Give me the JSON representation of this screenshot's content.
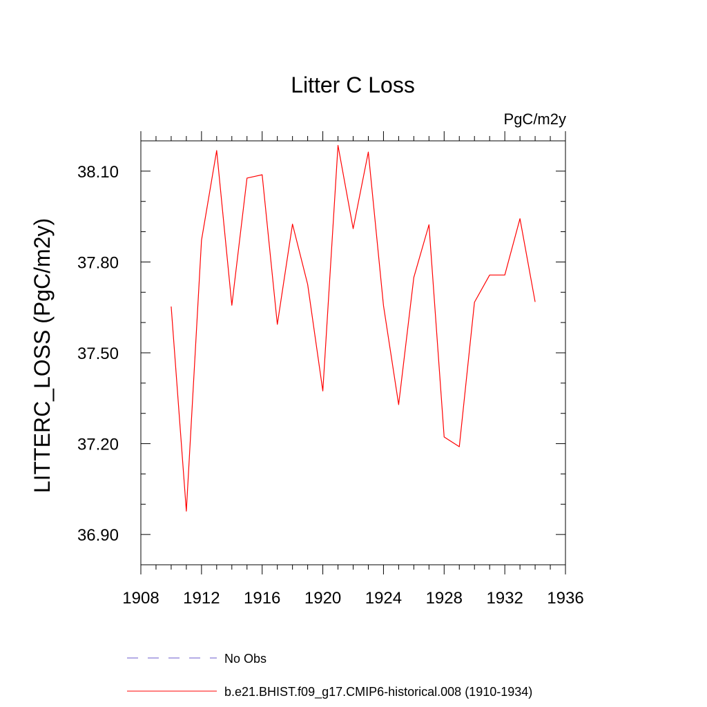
{
  "chart_data": {
    "type": "line",
    "title": "Litter C Loss",
    "units_label": "PgC/m2y",
    "ylabel": "LITTERC_LOSS  (PgC/m2y)",
    "xlim": [
      1908,
      1936
    ],
    "ylim": [
      36.8,
      38.2
    ],
    "x_ticks": [
      1908,
      1912,
      1916,
      1920,
      1924,
      1928,
      1932,
      1936
    ],
    "x_tick_labels": [
      "1908",
      "1912",
      "1916",
      "1920",
      "1924",
      "1928",
      "1932",
      "1936"
    ],
    "y_ticks": [
      36.9,
      37.2,
      37.5,
      37.8,
      38.1
    ],
    "y_tick_labels": [
      "36.90",
      "37.20",
      "37.50",
      "37.80",
      "38.10"
    ],
    "x": [
      1910,
      1911,
      1912,
      1913,
      1914,
      1915,
      1916,
      1917,
      1918,
      1919,
      1920,
      1921,
      1922,
      1923,
      1924,
      1925,
      1926,
      1927,
      1928,
      1929,
      1930,
      1931,
      1932,
      1933,
      1934
    ],
    "series": [
      {
        "name": "b.e21.BHIST.f09_g17.CMIP6-historical.008 (1910-1934)",
        "color": "#ff0000",
        "values": [
          37.653,
          36.977,
          37.872,
          38.168,
          37.657,
          38.077,
          38.088,
          37.594,
          37.925,
          37.726,
          37.374,
          38.185,
          37.91,
          38.163,
          37.656,
          37.329,
          37.749,
          37.923,
          37.222,
          37.19,
          37.667,
          37.757,
          37.757,
          37.943,
          37.668
        ]
      }
    ],
    "legend": [
      {
        "label": "No Obs",
        "color": "#6a5acd",
        "style": "dashed"
      },
      {
        "label": "b.e21.BHIST.f09_g17.CMIP6-historical.008 (1910-1934)",
        "color": "#ff0000",
        "style": "solid"
      }
    ]
  }
}
